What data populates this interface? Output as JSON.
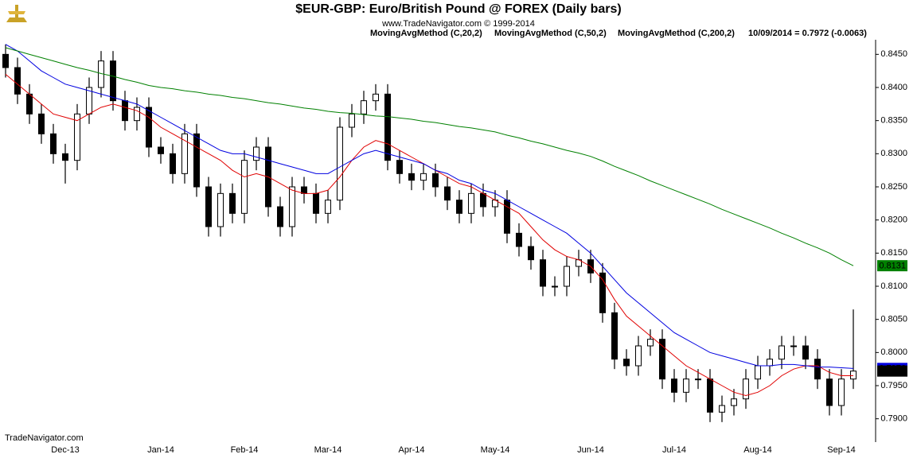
{
  "chart_data": {
    "type": "candlestick",
    "title": "$EUR-GBP:  Euro/British Pound @ FOREX  (Daily bars)",
    "subtitle": "www.TradeNavigator.com © 1999-2014",
    "info": "10/09/2014 = 0.7972 (-0.0063)",
    "watermark": "TradeNavigator.com",
    "categories": [
      null,
      null,
      null,
      null,
      null,
      "Dec-13",
      null,
      null,
      null,
      null,
      null,
      null,
      null,
      "Jan-14",
      null,
      null,
      null,
      null,
      null,
      null,
      "Feb-14",
      null,
      null,
      null,
      null,
      null,
      null,
      "Mar-14",
      null,
      null,
      null,
      null,
      null,
      null,
      "Apr-14",
      null,
      null,
      null,
      null,
      null,
      null,
      "May-14",
      null,
      null,
      null,
      null,
      null,
      null,
      null,
      "Jun-14",
      null,
      null,
      null,
      null,
      null,
      null,
      "Jul-14",
      null,
      null,
      null,
      null,
      null,
      null,
      "Aug-14",
      null,
      null,
      null,
      null,
      null,
      null,
      "Sep-14",
      null
    ],
    "open": [
      0.845,
      0.843,
      0.839,
      0.836,
      0.833,
      0.83,
      0.829,
      0.836,
      0.84,
      0.844,
      0.838,
      0.835,
      0.837,
      0.831,
      0.83,
      0.827,
      0.833,
      0.825,
      0.819,
      0.824,
      0.821,
      0.829,
      0.831,
      0.822,
      0.819,
      0.825,
      0.824,
      0.821,
      0.823,
      0.834,
      0.836,
      0.838,
      0.839,
      0.829,
      0.827,
      0.826,
      0.827,
      0.825,
      0.823,
      0.821,
      0.824,
      0.822,
      0.823,
      0.818,
      0.816,
      0.814,
      0.81,
      0.81,
      0.813,
      0.814,
      0.812,
      0.806,
      0.799,
      0.798,
      0.801,
      0.802,
      0.796,
      0.794,
      0.796,
      0.796,
      0.791,
      0.792,
      0.793,
      0.796,
      0.798,
      0.799,
      0.801,
      0.801,
      0.799,
      0.796,
      0.792,
      0.796
    ],
    "high": [
      0.8465,
      0.8445,
      0.8405,
      0.8375,
      0.8345,
      0.8315,
      0.8375,
      0.8415,
      0.8455,
      0.8455,
      0.8395,
      0.8385,
      0.8385,
      0.8325,
      0.8315,
      0.8345,
      0.8345,
      0.8265,
      0.8255,
      0.8255,
      0.8305,
      0.8325,
      0.8325,
      0.8235,
      0.8265,
      0.8265,
      0.8255,
      0.8245,
      0.8355,
      0.8375,
      0.8395,
      0.8405,
      0.8405,
      0.8305,
      0.8285,
      0.8285,
      0.8285,
      0.8265,
      0.8245,
      0.8255,
      0.8255,
      0.8245,
      0.8245,
      0.8195,
      0.8175,
      0.8155,
      0.8115,
      0.8145,
      0.8155,
      0.8155,
      0.8135,
      0.8075,
      0.8005,
      0.8025,
      0.8035,
      0.8035,
      0.7975,
      0.7975,
      0.7975,
      0.7975,
      0.7935,
      0.7945,
      0.7975,
      0.7995,
      0.8005,
      0.8025,
      0.8025,
      0.8025,
      0.8005,
      0.7975,
      0.7975,
      0.8065
    ],
    "low": [
      0.8415,
      0.8375,
      0.8345,
      0.8315,
      0.8285,
      0.8255,
      0.8275,
      0.8345,
      0.8385,
      0.8365,
      0.8335,
      0.8335,
      0.8295,
      0.8285,
      0.8255,
      0.8255,
      0.8235,
      0.8175,
      0.8175,
      0.8195,
      0.8195,
      0.8275,
      0.8205,
      0.8175,
      0.8175,
      0.8225,
      0.8195,
      0.8195,
      0.8215,
      0.8325,
      0.8345,
      0.8365,
      0.8275,
      0.8255,
      0.8245,
      0.8245,
      0.8235,
      0.8215,
      0.8195,
      0.8195,
      0.8205,
      0.8205,
      0.8165,
      0.8145,
      0.8125,
      0.8085,
      0.8085,
      0.8085,
      0.8115,
      0.8105,
      0.8045,
      0.7975,
      0.7965,
      0.7965,
      0.7995,
      0.7945,
      0.7925,
      0.7925,
      0.7945,
      0.7895,
      0.7895,
      0.7905,
      0.7915,
      0.7945,
      0.7965,
      0.7975,
      0.7995,
      0.7975,
      0.7945,
      0.7905,
      0.7905,
      0.7945
    ],
    "close": [
      0.843,
      0.839,
      0.836,
      0.833,
      0.83,
      0.829,
      0.836,
      0.84,
      0.844,
      0.838,
      0.835,
      0.837,
      0.831,
      0.83,
      0.827,
      0.833,
      0.825,
      0.819,
      0.824,
      0.821,
      0.829,
      0.831,
      0.822,
      0.819,
      0.825,
      0.824,
      0.821,
      0.823,
      0.834,
      0.836,
      0.838,
      0.839,
      0.829,
      0.827,
      0.826,
      0.827,
      0.825,
      0.823,
      0.821,
      0.824,
      0.822,
      0.823,
      0.818,
      0.816,
      0.814,
      0.81,
      0.81,
      0.813,
      0.814,
      0.812,
      0.806,
      0.799,
      0.798,
      0.801,
      0.802,
      0.796,
      0.794,
      0.796,
      0.796,
      0.791,
      0.792,
      0.793,
      0.796,
      0.798,
      0.799,
      0.801,
      0.801,
      0.799,
      0.796,
      0.792,
      0.796,
      0.7972
    ],
    "up_color": "#ffffff",
    "down_color": "#000000",
    "series": [
      {
        "name": "MovingAvgMethod (C,20,2)",
        "color": "#e00000",
        "values": [
          0.842,
          0.8405,
          0.839,
          0.8375,
          0.836,
          0.8355,
          0.835,
          0.836,
          0.837,
          0.8375,
          0.837,
          0.8365,
          0.8355,
          0.834,
          0.833,
          0.832,
          0.831,
          0.83,
          0.829,
          0.8275,
          0.8265,
          0.827,
          0.8265,
          0.8255,
          0.8245,
          0.824,
          0.824,
          0.8245,
          0.8265,
          0.829,
          0.831,
          0.832,
          0.8315,
          0.8305,
          0.8295,
          0.8285,
          0.8275,
          0.8265,
          0.8255,
          0.825,
          0.824,
          0.823,
          0.822,
          0.821,
          0.819,
          0.817,
          0.8155,
          0.8145,
          0.814,
          0.813,
          0.811,
          0.808,
          0.8055,
          0.804,
          0.8025,
          0.801,
          0.7995,
          0.798,
          0.797,
          0.796,
          0.795,
          0.794,
          0.7935,
          0.794,
          0.795,
          0.7965,
          0.7975,
          0.798,
          0.798,
          0.797,
          0.7965,
          0.7965
        ]
      },
      {
        "name": "MovingAvgMethod (C,50,2)",
        "color": "#0000e0",
        "values": [
          0.8465,
          0.8455,
          0.844,
          0.8425,
          0.8415,
          0.8405,
          0.84,
          0.8395,
          0.839,
          0.8385,
          0.838,
          0.8375,
          0.8365,
          0.8355,
          0.8345,
          0.8335,
          0.8325,
          0.8315,
          0.8305,
          0.83,
          0.83,
          0.8295,
          0.829,
          0.8285,
          0.828,
          0.8275,
          0.827,
          0.827,
          0.828,
          0.829,
          0.83,
          0.8305,
          0.83,
          0.8295,
          0.829,
          0.8285,
          0.8275,
          0.827,
          0.826,
          0.8255,
          0.8245,
          0.824,
          0.823,
          0.822,
          0.821,
          0.82,
          0.819,
          0.818,
          0.8165,
          0.815,
          0.813,
          0.811,
          0.809,
          0.8075,
          0.806,
          0.8045,
          0.803,
          0.802,
          0.801,
          0.8,
          0.7995,
          0.799,
          0.7985,
          0.798,
          0.798,
          0.7982,
          0.7982,
          0.798,
          0.7978,
          0.7978,
          0.7977,
          0.7976
        ]
      },
      {
        "name": "MovingAvgMethod (C,200,2)",
        "color": "#008000",
        "values": [
          0.846,
          0.8455,
          0.845,
          0.8445,
          0.844,
          0.8435,
          0.843,
          0.8426,
          0.8421,
          0.8417,
          0.8412,
          0.8408,
          0.8403,
          0.84,
          0.8398,
          0.8395,
          0.8393,
          0.839,
          0.8388,
          0.8385,
          0.8383,
          0.838,
          0.8377,
          0.8375,
          0.8372,
          0.8369,
          0.8367,
          0.8364,
          0.8362,
          0.8361,
          0.8359,
          0.8357,
          0.8356,
          0.8354,
          0.8352,
          0.8349,
          0.8347,
          0.8344,
          0.8341,
          0.8339,
          0.8336,
          0.8333,
          0.8328,
          0.8324,
          0.8319,
          0.8315,
          0.831,
          0.8305,
          0.8301,
          0.8296,
          0.8289,
          0.8281,
          0.8274,
          0.8267,
          0.8259,
          0.8252,
          0.8245,
          0.8238,
          0.8231,
          0.8224,
          0.8216,
          0.8209,
          0.8202,
          0.8195,
          0.8188,
          0.818,
          0.8173,
          0.8165,
          0.8158,
          0.815,
          0.814,
          0.8131
        ]
      }
    ],
    "ylim": [
      0.7878,
      0.8472
    ],
    "yticks": [
      {
        "value": 0.79,
        "label": "0.7900"
      },
      {
        "value": 0.795,
        "label": "0.7950"
      },
      {
        "value": 0.8,
        "label": "0.8000"
      },
      {
        "value": 0.805,
        "label": "0.8050"
      },
      {
        "value": 0.81,
        "label": "0.8100"
      },
      {
        "value": 0.815,
        "label": "0.8150"
      },
      {
        "value": 0.82,
        "label": "0.8200"
      },
      {
        "value": 0.825,
        "label": "0.8250"
      },
      {
        "value": 0.83,
        "label": "0.8300"
      },
      {
        "value": 0.835,
        "label": "0.8350"
      },
      {
        "value": 0.84,
        "label": "0.8400"
      },
      {
        "value": 0.845,
        "label": "0.8450"
      }
    ]
  }
}
